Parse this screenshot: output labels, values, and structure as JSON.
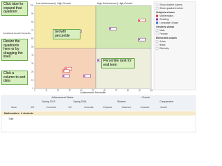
{
  "callouts": [
    "Click label to expand that quadrant",
    "Resize the quadrants here or by dragging the lines",
    "Click a column to sort data",
    "Growth percentile",
    "Percentile rank for end term"
  ],
  "chart_data": {
    "type": "scatter",
    "quadrant_labels": [
      "Low Achievement | High Growth",
      "High Achievement | High Growth"
    ],
    "x_label": "Achievement Percentile",
    "y_label": "Conditional Growth Percentile",
    "xlim": [
      0,
      100
    ],
    "ylim": [
      0,
      100
    ],
    "xticks": [
      0,
      10,
      20,
      30,
      40,
      50,
      60,
      70,
      80,
      90,
      100
    ],
    "yticks": [
      0,
      10,
      20,
      30,
      40,
      50,
      60,
      70,
      80,
      90,
      100
    ],
    "series": [
      {
        "name": "Mathematics",
        "color": "#d9363e",
        "x": [
          92,
          29,
          27
        ],
        "y": [
          82,
          24,
          21
        ]
      },
      {
        "name": "Reading",
        "color": "#8e3a9e",
        "x": [
          37,
          34,
          67,
          92,
          57,
          27,
          45
        ],
        "y": [
          69,
          63,
          72,
          59,
          34,
          15,
          15
        ]
      },
      {
        "name": "Language Usage",
        "color": "#3a6ec9",
        "x": [],
        "y": []
      }
    ]
  },
  "panel": {
    "options": [
      "Show student names",
      "Show quadrant colors"
    ],
    "subjects_title": "Subjects shown",
    "genders_title": "Genders shown",
    "genders": [
      "Male",
      "Female"
    ],
    "ethnicities_title": "Ethnicities shown",
    "ethnicities": [
      "Asian",
      "Black",
      "Ethnicity"
    ]
  },
  "table": {
    "groups": [
      "Achievement Status",
      "Growth"
    ],
    "terms": [
      "Spring 2013",
      "Spring 2014",
      "Student",
      "Comparative"
    ],
    "columns": [
      "Name",
      "RIT",
      "Percentile",
      "RIT",
      "Percentile",
      "Projected",
      "Observed",
      "Projected",
      "Growth"
    ],
    "group_row": "Mathematics : 4 students",
    "rows": [
      [
        "Tyler"
      ]
    ]
  }
}
